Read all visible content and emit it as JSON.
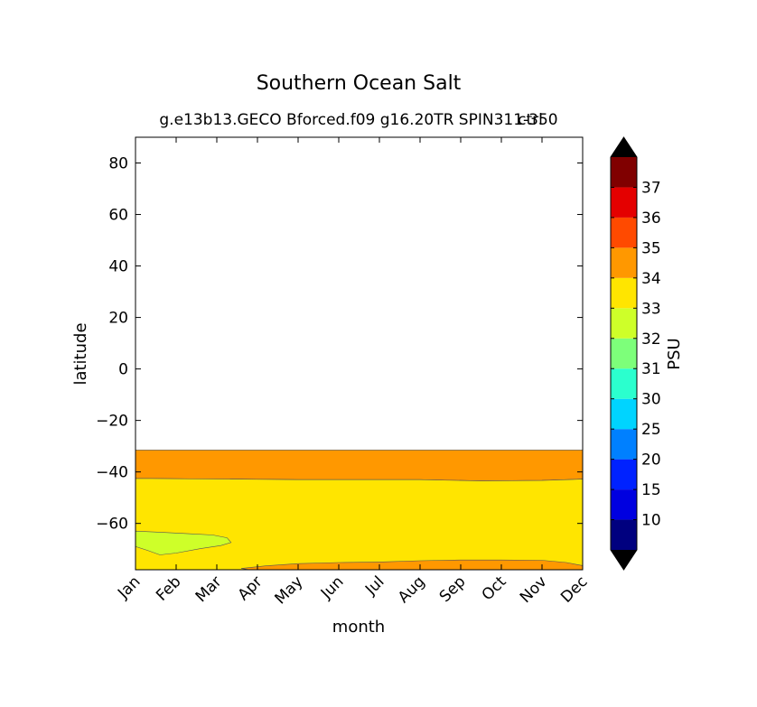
{
  "chart_data": {
    "type": "contour",
    "title": "Southern Ocean Salt",
    "subtitle": "g.e13b13.GECO Bforced.f09 g16.20TR SPIN311-350",
    "subtitle_overlap": "ctrl",
    "xlabel": "month",
    "ylabel": "latitude",
    "x_categories": [
      "Jan",
      "Feb",
      "Mar",
      "Apr",
      "May",
      "Jun",
      "Jul",
      "Aug",
      "Sep",
      "Oct",
      "Nov",
      "Dec"
    ],
    "yticks": [
      80,
      60,
      40,
      20,
      0,
      -20,
      -40,
      -60
    ],
    "ytick_labels": [
      "80",
      "60",
      "40",
      "20",
      "0",
      "−20",
      "−40",
      "−60"
    ],
    "ylim": [
      -78,
      90
    ],
    "data_top_lat": -31.5,
    "colorbar": {
      "label": "PSU",
      "levels": [
        5,
        10,
        15,
        20,
        25,
        30,
        31,
        32,
        33,
        34,
        35,
        36,
        37,
        38
      ],
      "tick_labels": [
        "10",
        "15",
        "20",
        "25",
        "30",
        "31",
        "32",
        "33",
        "34",
        "35",
        "36",
        "37"
      ],
      "colors": [
        "#00007f",
        "#0000e0",
        "#0022ff",
        "#0080ff",
        "#00d4ff",
        "#2bffce",
        "#7dff7a",
        "#ceff29",
        "#ffe500",
        "#ff9800",
        "#ff4a00",
        "#e40000",
        "#800000"
      ],
      "extend": "both",
      "over_color": "#000000",
      "under_color": "#000000"
    },
    "regions": [
      {
        "range": "34-35",
        "color": "#ff9800",
        "upper": [
          [
            1,
            -31.5
          ],
          [
            12,
            -31.5
          ]
        ],
        "lower": [
          [
            1,
            -42.5
          ],
          [
            5,
            -43
          ],
          [
            8,
            -43
          ],
          [
            9.5,
            -43.5
          ],
          [
            11,
            -43.3
          ],
          [
            12,
            -42.8
          ]
        ]
      },
      {
        "range": "33-34",
        "color": "#ffe500",
        "upper": [
          [
            1,
            -42.5
          ],
          [
            5,
            -43
          ],
          [
            8,
            -43
          ],
          [
            9.5,
            -43.5
          ],
          [
            11,
            -43.3
          ],
          [
            12,
            -42.8
          ]
        ],
        "lower": [
          [
            1,
            -78
          ],
          [
            12,
            -78
          ]
        ]
      },
      {
        "range": "34-35",
        "color": "#ff9800",
        "polygon": [
          [
            3.6,
            -77.5
          ],
          [
            4.2,
            -76.5
          ],
          [
            5,
            -75.6
          ],
          [
            6,
            -75.2
          ],
          [
            7,
            -75
          ],
          [
            8,
            -74.5
          ],
          [
            9,
            -74.2
          ],
          [
            10,
            -74.2
          ],
          [
            11,
            -74.3
          ],
          [
            11.6,
            -75.2
          ],
          [
            12,
            -76.4
          ],
          [
            12,
            -78
          ],
          [
            3.8,
            -78
          ]
        ]
      },
      {
        "range": "32-33",
        "color": "#ceff29",
        "polygon": [
          [
            1,
            -63
          ],
          [
            1.6,
            -63.4
          ],
          [
            2.3,
            -64
          ],
          [
            2.9,
            -64.5
          ],
          [
            3.25,
            -65.6
          ],
          [
            3.35,
            -67.4
          ],
          [
            3.1,
            -68.6
          ],
          [
            2.6,
            -69.8
          ],
          [
            2,
            -71.5
          ],
          [
            1.6,
            -72.2
          ],
          [
            1.3,
            -70.5
          ],
          [
            1,
            -69
          ]
        ]
      }
    ]
  }
}
